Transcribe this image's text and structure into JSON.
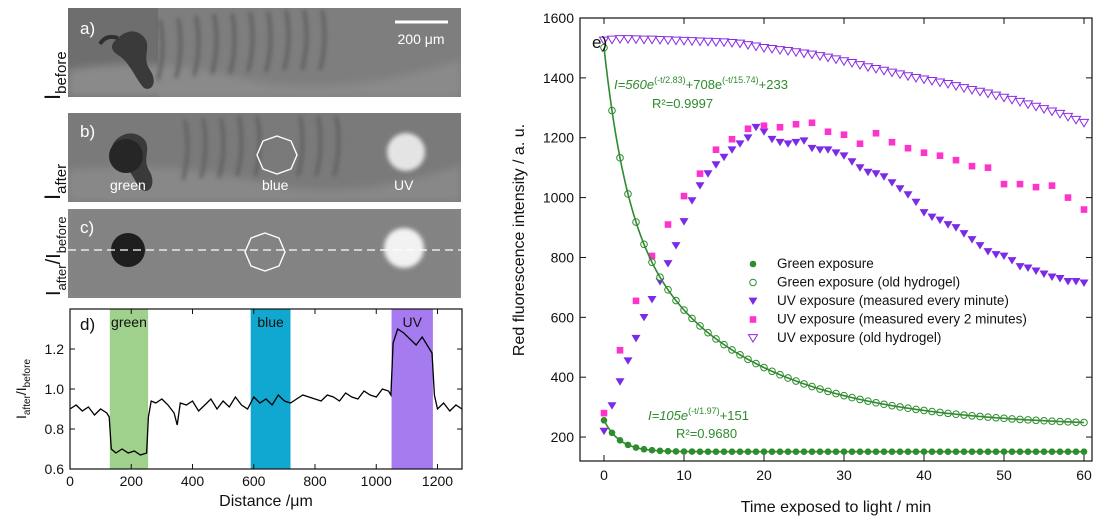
{
  "images": {
    "a": {
      "label": "a)",
      "row_label": "I",
      "row_label_sub": "before"
    },
    "b": {
      "label": "b)",
      "row_label": "I",
      "row_label_sub": "after",
      "spot_labels": [
        "green",
        "blue",
        "UV"
      ]
    },
    "c": {
      "label": "c)",
      "row_label_1": "I",
      "row_label_1_sub": "after",
      "row_label_2": "/I",
      "row_label_2_sub": "before"
    },
    "scale_bar": "200 μm"
  },
  "chart_data": [
    {
      "id": "d",
      "panel_label": "d)",
      "type": "line",
      "xlabel": "Distance /μm",
      "ylabel_main": "I",
      "ylabel_sub1": "after",
      "ylabel_mid": "/I",
      "ylabel_sub2": "before",
      "xlim": [
        0,
        1280
      ],
      "ylim": [
        0.6,
        1.4
      ],
      "xticks": [
        0,
        200,
        400,
        600,
        800,
        1000,
        1200
      ],
      "yticks": [
        0.6,
        0.8,
        1.0,
        1.2
      ],
      "yticklabels": [
        "0.6",
        "0.8",
        "1.0",
        "1.2"
      ],
      "bands": [
        {
          "label": "green",
          "x0": 130,
          "x1": 255,
          "color": "#9fd08c"
        },
        {
          "label": "blue",
          "x0": 590,
          "x1": 720,
          "color": "#10a8d0"
        },
        {
          "label": "UV",
          "x0": 1050,
          "x1": 1185,
          "color": "#a77bf0"
        }
      ],
      "series": [
        {
          "color": "#000000",
          "x": [
            0,
            20,
            40,
            60,
            80,
            100,
            120,
            128,
            135,
            150,
            170,
            190,
            210,
            230,
            250,
            256,
            265,
            280,
            300,
            320,
            340,
            350,
            360,
            380,
            400,
            420,
            440,
            460,
            480,
            500,
            520,
            540,
            560,
            580,
            600,
            620,
            640,
            660,
            680,
            700,
            720,
            740,
            760,
            780,
            800,
            820,
            840,
            860,
            880,
            900,
            920,
            940,
            960,
            980,
            1000,
            1020,
            1040,
            1048,
            1055,
            1070,
            1090,
            1110,
            1130,
            1150,
            1170,
            1182,
            1190,
            1200,
            1220,
            1240,
            1260,
            1280
          ],
          "y": [
            0.9,
            0.92,
            0.89,
            0.91,
            0.87,
            0.9,
            0.88,
            0.86,
            0.7,
            0.68,
            0.7,
            0.68,
            0.69,
            0.67,
            0.68,
            0.86,
            0.94,
            0.93,
            0.95,
            0.92,
            0.88,
            0.82,
            0.93,
            0.92,
            0.94,
            0.89,
            0.92,
            0.95,
            0.9,
            0.94,
            0.91,
            0.96,
            0.92,
            0.9,
            0.96,
            0.93,
            0.95,
            0.92,
            0.97,
            0.94,
            0.93,
            0.95,
            0.97,
            0.96,
            0.95,
            0.94,
            0.97,
            0.96,
            0.94,
            0.98,
            0.96,
            0.95,
            0.99,
            0.97,
            0.96,
            1.0,
            0.99,
            0.97,
            1.23,
            1.3,
            1.28,
            1.25,
            1.22,
            1.26,
            1.21,
            1.18,
            0.97,
            0.9,
            0.93,
            0.89,
            0.92,
            0.9
          ]
        }
      ]
    },
    {
      "id": "e",
      "panel_label": "e)",
      "type": "scatter",
      "xlabel": "Time exposed to light / min",
      "ylabel": "Red fluorescence intensity / a. u.",
      "xlim": [
        -3,
        61
      ],
      "ylim": [
        120,
        1600
      ],
      "xticks": [
        0,
        10,
        20,
        30,
        40,
        50,
        60
      ],
      "yticks": [
        200,
        400,
        600,
        800,
        1000,
        1200,
        1400,
        1600
      ],
      "series": [
        {
          "name": "Green exposure",
          "marker": "filled-circle",
          "color": "#2e8b2e",
          "fit": {
            "A": 105,
            "tau": 1.97,
            "C": 151
          },
          "x_step": 1,
          "x_count": 61
        },
        {
          "name": "Green exposure (old hydrogel)",
          "marker": "open-circle",
          "color": "#2e8b2e",
          "fit": {
            "A1": 560,
            "tau1": 2.83,
            "A2": 708,
            "tau2": 15.74,
            "C": 233
          },
          "x_step": 1,
          "x_count": 61
        },
        {
          "name": "UV exposure (measured every minute)",
          "marker": "filled-triangle-down",
          "color": "#7b2be6",
          "x": [
            0,
            1,
            2,
            3,
            4,
            5,
            6,
            7,
            8,
            9,
            10,
            11,
            12,
            13,
            14,
            15,
            16,
            17,
            18,
            19,
            20,
            21,
            22,
            23,
            24,
            25,
            26,
            27,
            28,
            29,
            30,
            31,
            32,
            33,
            34,
            35,
            36,
            37,
            38,
            39,
            40,
            41,
            42,
            43,
            44,
            45,
            46,
            47,
            48,
            49,
            50,
            51,
            52,
            53,
            54,
            55,
            56,
            57,
            58,
            59,
            60
          ],
          "y": [
            220,
            305,
            385,
            455,
            530,
            600,
            660,
            720,
            780,
            840,
            920,
            990,
            1040,
            1080,
            1110,
            1135,
            1160,
            1180,
            1200,
            1235,
            1220,
            1195,
            1185,
            1180,
            1185,
            1190,
            1165,
            1160,
            1160,
            1150,
            1140,
            1120,
            1100,
            1085,
            1080,
            1070,
            1050,
            1030,
            1010,
            985,
            950,
            935,
            925,
            910,
            900,
            880,
            860,
            840,
            820,
            810,
            805,
            790,
            770,
            765,
            755,
            745,
            735,
            730,
            720,
            720,
            715
          ]
        },
        {
          "name": "UV exposure (measured every 2 minutes)",
          "marker": "filled-square",
          "color": "#ff33cc",
          "x": [
            0,
            2,
            4,
            6,
            8,
            10,
            12,
            14,
            16,
            18,
            20,
            22,
            24,
            26,
            28,
            30,
            32,
            34,
            36,
            38,
            40,
            42,
            44,
            46,
            48,
            50,
            52,
            54,
            56,
            58,
            60
          ],
          "y": [
            280,
            490,
            655,
            805,
            910,
            1005,
            1080,
            1160,
            1195,
            1230,
            1240,
            1235,
            1245,
            1250,
            1220,
            1210,
            1180,
            1215,
            1185,
            1165,
            1150,
            1140,
            1125,
            1105,
            1100,
            1045,
            1045,
            1035,
            1040,
            1000,
            960
          ]
        },
        {
          "name": "UV exposure (old hydrogel)",
          "marker": "open-triangle-down",
          "color": "#8a2be2",
          "x": [
            0,
            1,
            2,
            3,
            4,
            5,
            6,
            7,
            8,
            9,
            10,
            11,
            12,
            13,
            14,
            15,
            16,
            17,
            18,
            19,
            20,
            21,
            22,
            23,
            24,
            25,
            26,
            27,
            28,
            29,
            30,
            31,
            32,
            33,
            34,
            35,
            36,
            37,
            38,
            39,
            40,
            41,
            42,
            43,
            44,
            45,
            46,
            47,
            48,
            49,
            50,
            51,
            52,
            53,
            54,
            55,
            56,
            57,
            58,
            59,
            60
          ],
          "y": [
            1525,
            1528,
            1530,
            1530,
            1529,
            1528,
            1528,
            1527,
            1526,
            1525,
            1524,
            1523,
            1522,
            1521,
            1520,
            1519,
            1517,
            1515,
            1510,
            1505,
            1500,
            1497,
            1493,
            1490,
            1486,
            1482,
            1478,
            1473,
            1468,
            1462,
            1456,
            1450,
            1443,
            1436,
            1430,
            1424,
            1418,
            1412,
            1406,
            1400,
            1395,
            1390,
            1385,
            1380,
            1373,
            1366,
            1360,
            1354,
            1348,
            1341,
            1334,
            1327,
            1320,
            1312,
            1304,
            1296,
            1288,
            1280,
            1270,
            1260,
            1250
          ]
        }
      ],
      "annotations": {
        "fit_old_main": "I=560e",
        "fit_old_exp1": "(-t/2.83)",
        "fit_old_mid": "+708e",
        "fit_old_exp2": "(-t/15.74)",
        "fit_old_end": "+233",
        "fit_old_r2": "R²=0.9997",
        "fit_new_main": "I=105e",
        "fit_new_exp": "(-t/1.97)",
        "fit_new_end": "+151",
        "fit_new_r2": "R²=0.9680"
      }
    }
  ]
}
